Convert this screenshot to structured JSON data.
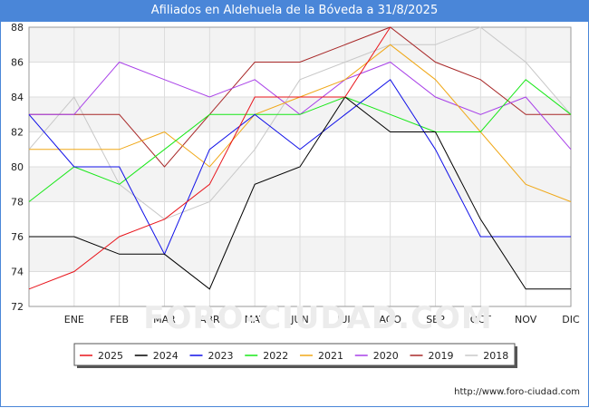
{
  "chart_data": {
    "type": "line",
    "title": "Afiliados en Aldehuela de la Bóveda a 31/8/2025",
    "categories": [
      "",
      "ENE",
      "FEB",
      "MAR",
      "ABR",
      "MAY",
      "JUN",
      "JUL",
      "AGO",
      "SEP",
      "OCT",
      "NOV",
      "DIC"
    ],
    "ylim": [
      72,
      88
    ],
    "yticks": [
      72,
      74,
      76,
      78,
      80,
      82,
      84,
      86,
      88
    ],
    "grid": true,
    "legend_position": "bottom",
    "watermark": "FORO-CIUDAD.COM",
    "series": [
      {
        "name": "2025",
        "color": "#e8141b",
        "values": [
          73,
          74,
          76,
          77,
          79,
          84,
          84,
          84,
          88,
          null,
          null,
          null,
          null
        ]
      },
      {
        "name": "2024",
        "color": "#000000",
        "values": [
          76,
          76,
          75,
          75,
          73,
          79,
          80,
          84,
          82,
          82,
          77,
          73,
          73
        ]
      },
      {
        "name": "2023",
        "color": "#1010e8",
        "values": [
          83,
          80,
          80,
          75,
          81,
          83,
          81,
          83,
          85,
          81,
          76,
          76,
          76
        ]
      },
      {
        "name": "2022",
        "color": "#18e818",
        "values": [
          78,
          80,
          79,
          81,
          83,
          83,
          83,
          84,
          83,
          82,
          82,
          85,
          83
        ]
      },
      {
        "name": "2021",
        "color": "#f0a818",
        "values": [
          81,
          81,
          81,
          82,
          80,
          83,
          84,
          85,
          87,
          85,
          82,
          79,
          78
        ]
      },
      {
        "name": "2020",
        "color": "#a840e8",
        "values": [
          83,
          83,
          86,
          85,
          84,
          85,
          83,
          85,
          86,
          84,
          83,
          84,
          81
        ]
      },
      {
        "name": "2019",
        "color": "#a82828",
        "values": [
          83,
          83,
          83,
          80,
          83,
          86,
          86,
          87,
          88,
          86,
          85,
          83,
          83
        ]
      },
      {
        "name": "2018",
        "color": "#c8c8c8",
        "values": [
          81,
          84,
          79,
          77,
          78,
          81,
          85,
          86,
          87,
          87,
          88,
          86,
          83
        ]
      }
    ]
  },
  "source": "http://www.foro-ciudad.com"
}
